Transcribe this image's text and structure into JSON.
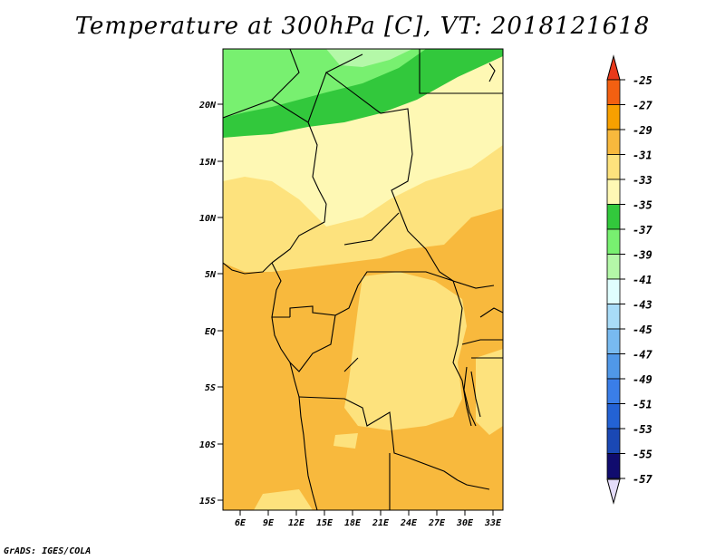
{
  "title": "Temperature at 300hPa [C], VT: 2018121618",
  "credit": "GrADS: IGES/COLA",
  "map": {
    "lon_range": [
      3,
      34
    ],
    "lat_range": [
      -16,
      25
    ],
    "lat_labels": [
      "20N",
      "15N",
      "10N",
      "5N",
      "EQ",
      "5S",
      "10S",
      "15S"
    ],
    "lon_labels": [
      "6E",
      "9E",
      "12E",
      "15E",
      "18E",
      "21E",
      "24E",
      "27E",
      "30E",
      "33E"
    ]
  },
  "legend": {
    "labels": [
      "-25",
      "-27",
      "-29",
      "-31",
      "-33",
      "-35",
      "-37",
      "-39",
      "-41",
      "-43",
      "-45",
      "-47",
      "-49",
      "-51",
      "-53",
      "-55",
      "-57"
    ],
    "colors": [
      "#e8391b",
      "#f36011",
      "#f8a000",
      "#f8b93d",
      "#fde27d",
      "#fef8b4",
      "#32c83c",
      "#78f070",
      "#b4f8a8",
      "#e0fefe",
      "#a8dcf8",
      "#78baf0",
      "#5098e8",
      "#3a7ee8",
      "#2362d4",
      "#1a48b4",
      "#100c6e",
      "#e4dcfa"
    ]
  }
}
